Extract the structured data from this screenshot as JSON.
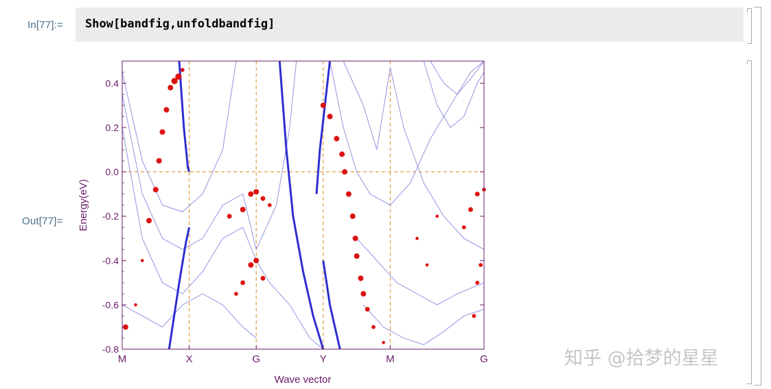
{
  "notebook": {
    "input_label": "In[77]:=",
    "output_label": "Out[77]=",
    "input_code": "Show[bandfig,unfoldbandfig]"
  },
  "watermark": "知乎 @拾梦的星星",
  "colors": {
    "axes": "#6a1a6a",
    "band_line": "#7b7bd8",
    "band_line_bold": "#2e2ed0",
    "unfold_marker": "#dd1111",
    "dashed_guide": "#d98a1a",
    "label_text": "#4a6f8a",
    "input_bg": "#ebebeb"
  },
  "chart_data": {
    "type": "line",
    "title": "",
    "xlabel": "Wave vector",
    "ylabel": "Energy(eV)",
    "ylim": [
      -0.8,
      0.5
    ],
    "xlim": [
      0,
      5.4
    ],
    "x_ticks": [
      {
        "pos": 0,
        "label": "M"
      },
      {
        "pos": 1,
        "label": "X"
      },
      {
        "pos": 2,
        "label": "G"
      },
      {
        "pos": 3,
        "label": "Y"
      },
      {
        "pos": 4,
        "label": "M"
      },
      {
        "pos": 5.4,
        "label": "G"
      }
    ],
    "y_ticks": [
      {
        "value": 0.4,
        "label": "0.4"
      },
      {
        "value": 0.2,
        "label": "0.2"
      },
      {
        "value": 0.0,
        "label": "0.0"
      },
      {
        "value": -0.2,
        "label": "-0.2"
      },
      {
        "value": -0.4,
        "label": "-0.4"
      },
      {
        "value": -0.6,
        "label": "-0.6"
      },
      {
        "value": -0.8,
        "label": "-0.8"
      }
    ],
    "fermi_level": 0.0,
    "grid": false,
    "series": [
      {
        "points": [
          [
            0,
            0.45
          ],
          [
            0.3,
            0.05
          ],
          [
            0.6,
            -0.15
          ],
          [
            0.9,
            -0.18
          ],
          [
            1.2,
            -0.1
          ],
          [
            1.5,
            0.1
          ],
          [
            1.7,
            0.5
          ]
        ]
      },
      {
        "points": [
          [
            0,
            0.35
          ],
          [
            0.3,
            -0.1
          ],
          [
            0.6,
            -0.3
          ],
          [
            0.9,
            -0.35
          ],
          [
            1.2,
            -0.3
          ],
          [
            1.5,
            -0.15
          ],
          [
            1.8,
            -0.1
          ],
          [
            2.0,
            -0.35
          ],
          [
            2.3,
            -0.15
          ],
          [
            2.5,
            0.2
          ],
          [
            2.6,
            0.5
          ]
        ]
      },
      {
        "points": [
          [
            0,
            0.2
          ],
          [
            0.3,
            -0.3
          ],
          [
            0.6,
            -0.5
          ],
          [
            0.9,
            -0.55
          ],
          [
            1.2,
            -0.45
          ],
          [
            1.5,
            -0.3
          ],
          [
            1.8,
            -0.25
          ],
          [
            2.0,
            -0.4
          ],
          [
            2.2,
            -0.5
          ],
          [
            2.5,
            -0.6
          ],
          [
            2.8,
            -0.75
          ],
          [
            3.0,
            -0.8
          ]
        ]
      },
      {
        "points": [
          [
            0,
            -0.6
          ],
          [
            0.3,
            -0.65
          ],
          [
            0.6,
            -0.7
          ],
          [
            0.9,
            -0.6
          ],
          [
            1.2,
            -0.55
          ],
          [
            1.5,
            -0.6
          ],
          [
            1.8,
            -0.7
          ],
          [
            2.0,
            -0.75
          ]
        ]
      },
      {
        "points": [
          [
            3.1,
            0.5
          ],
          [
            3.3,
            0.2
          ],
          [
            3.5,
            0.0
          ],
          [
            3.7,
            -0.1
          ],
          [
            4.0,
            -0.15
          ],
          [
            4.3,
            -0.05
          ],
          [
            4.6,
            0.15
          ],
          [
            4.9,
            0.3
          ],
          [
            5.2,
            0.45
          ],
          [
            5.4,
            0.5
          ]
        ]
      },
      {
        "points": [
          [
            3.3,
            0.5
          ],
          [
            3.6,
            0.3
          ],
          [
            3.8,
            0.1
          ],
          [
            4.0,
            0.47
          ],
          [
            4.2,
            0.2
          ],
          [
            4.5,
            -0.05
          ],
          [
            4.8,
            -0.2
          ],
          [
            5.1,
            -0.3
          ],
          [
            5.4,
            -0.35
          ]
        ]
      },
      {
        "points": [
          [
            3.5,
            -0.3
          ],
          [
            3.8,
            -0.4
          ],
          [
            4.1,
            -0.5
          ],
          [
            4.4,
            -0.55
          ],
          [
            4.7,
            -0.6
          ],
          [
            5.0,
            -0.55
          ],
          [
            5.4,
            -0.5
          ]
        ]
      },
      {
        "points": [
          [
            3.6,
            -0.6
          ],
          [
            3.9,
            -0.7
          ],
          [
            4.2,
            -0.75
          ],
          [
            4.5,
            -0.78
          ],
          [
            4.8,
            -0.72
          ],
          [
            5.1,
            -0.65
          ],
          [
            5.4,
            -0.62
          ]
        ]
      },
      {
        "points": [
          [
            4.6,
            0.5
          ],
          [
            4.8,
            0.4
          ],
          [
            5.0,
            0.35
          ],
          [
            5.2,
            0.42
          ],
          [
            5.4,
            0.5
          ]
        ]
      },
      {
        "points": [
          [
            4.5,
            0.5
          ],
          [
            4.7,
            0.3
          ],
          [
            4.9,
            0.2
          ],
          [
            5.1,
            0.25
          ],
          [
            5.3,
            0.4
          ],
          [
            5.4,
            0.45
          ]
        ]
      }
    ],
    "bold_bands": [
      {
        "points": [
          [
            0.7,
            -0.8
          ],
          [
            0.85,
            -0.5
          ],
          [
            0.95,
            -0.32
          ],
          [
            1.0,
            -0.25
          ]
        ]
      },
      {
        "points": [
          [
            0.85,
            0.5
          ],
          [
            0.92,
            0.2
          ],
          [
            0.98,
            0.02
          ],
          [
            1.0,
            0.0
          ]
        ]
      },
      {
        "points": [
          [
            2.35,
            0.5
          ],
          [
            2.45,
            0.1
          ],
          [
            2.55,
            -0.2
          ],
          [
            2.7,
            -0.45
          ],
          [
            2.85,
            -0.65
          ],
          [
            3.0,
            -0.8
          ]
        ]
      },
      {
        "points": [
          [
            3.1,
            0.5
          ],
          [
            2.95,
            0.1
          ],
          [
            2.9,
            -0.1
          ]
        ]
      },
      {
        "points": [
          [
            3.0,
            -0.4
          ],
          [
            3.1,
            -0.6
          ],
          [
            3.25,
            -0.8
          ]
        ]
      }
    ],
    "unfold_points": [
      {
        "x": 0.05,
        "y": -0.7,
        "w": 1.0
      },
      {
        "x": 0.2,
        "y": -0.6,
        "w": 0.4
      },
      {
        "x": 0.3,
        "y": -0.4,
        "w": 0.4
      },
      {
        "x": 0.4,
        "y": -0.22,
        "w": 1.0
      },
      {
        "x": 0.5,
        "y": -0.08,
        "w": 1.0
      },
      {
        "x": 0.55,
        "y": 0.05,
        "w": 1.0
      },
      {
        "x": 0.6,
        "y": 0.18,
        "w": 1.0
      },
      {
        "x": 0.66,
        "y": 0.28,
        "w": 1.0
      },
      {
        "x": 0.72,
        "y": 0.38,
        "w": 1.0
      },
      {
        "x": 0.78,
        "y": 0.41,
        "w": 1.2
      },
      {
        "x": 0.84,
        "y": 0.43,
        "w": 1.2
      },
      {
        "x": 0.9,
        "y": 0.46,
        "w": 0.6
      },
      {
        "x": 1.6,
        "y": -0.2,
        "w": 0.8
      },
      {
        "x": 1.8,
        "y": -0.17,
        "w": 1.0
      },
      {
        "x": 1.92,
        "y": -0.1,
        "w": 1.0
      },
      {
        "x": 2.0,
        "y": -0.09,
        "w": 1.0
      },
      {
        "x": 2.1,
        "y": -0.12,
        "w": 0.8
      },
      {
        "x": 2.2,
        "y": -0.15,
        "w": 0.6
      },
      {
        "x": 1.8,
        "y": -0.5,
        "w": 0.8
      },
      {
        "x": 1.92,
        "y": -0.42,
        "w": 1.0
      },
      {
        "x": 2.0,
        "y": -0.4,
        "w": 1.0
      },
      {
        "x": 2.1,
        "y": -0.48,
        "w": 0.8
      },
      {
        "x": 1.7,
        "y": -0.55,
        "w": 0.6
      },
      {
        "x": 3.0,
        "y": 0.3,
        "w": 1.0
      },
      {
        "x": 3.1,
        "y": 0.25,
        "w": 1.0
      },
      {
        "x": 3.2,
        "y": 0.15,
        "w": 1.0
      },
      {
        "x": 3.28,
        "y": 0.08,
        "w": 1.0
      },
      {
        "x": 3.32,
        "y": 0.0,
        "w": 1.0
      },
      {
        "x": 3.38,
        "y": -0.1,
        "w": 1.0
      },
      {
        "x": 3.44,
        "y": -0.2,
        "w": 1.0
      },
      {
        "x": 3.48,
        "y": -0.3,
        "w": 1.0
      },
      {
        "x": 3.5,
        "y": -0.38,
        "w": 1.0
      },
      {
        "x": 3.56,
        "y": -0.48,
        "w": 1.0
      },
      {
        "x": 3.6,
        "y": -0.55,
        "w": 1.0
      },
      {
        "x": 3.66,
        "y": -0.62,
        "w": 0.8
      },
      {
        "x": 3.75,
        "y": -0.7,
        "w": 0.6
      },
      {
        "x": 3.9,
        "y": -0.77,
        "w": 0.4
      },
      {
        "x": 4.4,
        "y": -0.3,
        "w": 0.4
      },
      {
        "x": 4.55,
        "y": -0.42,
        "w": 0.4
      },
      {
        "x": 4.7,
        "y": -0.2,
        "w": 0.4
      },
      {
        "x": 5.1,
        "y": -0.25,
        "w": 0.6
      },
      {
        "x": 5.2,
        "y": -0.17,
        "w": 0.8
      },
      {
        "x": 5.3,
        "y": -0.1,
        "w": 0.8
      },
      {
        "x": 5.4,
        "y": -0.08,
        "w": 0.6
      },
      {
        "x": 5.35,
        "y": -0.42,
        "w": 0.6
      },
      {
        "x": 5.3,
        "y": -0.5,
        "w": 0.6
      },
      {
        "x": 5.25,
        "y": -0.65,
        "w": 0.6
      }
    ]
  }
}
